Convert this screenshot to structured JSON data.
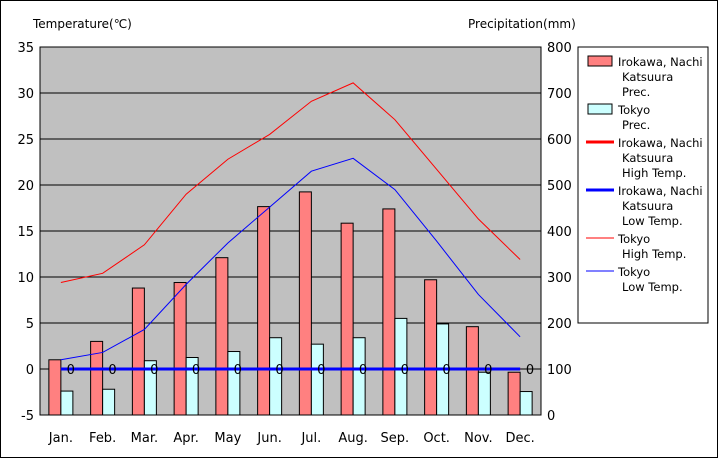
{
  "chart_data": {
    "type": "bar+line",
    "left_axis_title": "Temperature(℃)",
    "right_axis_title": "Precipitation(mm)",
    "left_ticks": [
      "35",
      "30",
      "25",
      "20",
      "15",
      "10",
      "5",
      "0",
      "-5"
    ],
    "right_ticks": [
      "800",
      "700",
      "600",
      "500",
      "400",
      "300",
      "200",
      "100",
      "0"
    ],
    "ylim_temp": [
      -5,
      35
    ],
    "ylim_prec": [
      0,
      800
    ],
    "categories": [
      "Jan.",
      "Feb.",
      "Mar.",
      "Apr.",
      "May",
      "Jun.",
      "Jul.",
      "Aug.",
      "Sep.",
      "Oct.",
      "Nov.",
      "Dec."
    ],
    "bar_series": [
      {
        "name": "Irokawa, Nachi Katsuura Prec.",
        "color": "#ff8080",
        "values": [
          120,
          160,
          276,
          288,
          342,
          453,
          485,
          417,
          448,
          294,
          192,
          93
        ]
      },
      {
        "name": "Tokyo Prec.",
        "color": "#ccffff",
        "values": [
          52,
          56,
          118,
          125,
          138,
          168,
          154,
          168,
          210,
          198,
          93,
          51
        ]
      }
    ],
    "line_series": [
      {
        "name": "Irokawa, Nachi Katsuura High Temp.",
        "color": "#ff0000",
        "width": 3,
        "values": [
          0,
          0,
          0,
          0,
          0,
          0,
          0,
          0,
          0,
          0,
          0,
          0
        ]
      },
      {
        "name": "Irokawa, Nachi Katsuura Low Temp.",
        "color": "#0000ff",
        "width": 3,
        "values": [
          0,
          0,
          0,
          0,
          0,
          0,
          0,
          0,
          0,
          0,
          0,
          0
        ]
      },
      {
        "name": "Tokyo High Temp.",
        "color": "#ff0000",
        "width": 1,
        "values": [
          9.4,
          10.4,
          13.5,
          19,
          22.8,
          25.5,
          29.1,
          31.1,
          27.1,
          21.7,
          16.3,
          11.9
        ]
      },
      {
        "name": "Tokyo Low Temp.",
        "color": "#0000ff",
        "width": 1,
        "values": [
          1.0,
          1.8,
          4.3,
          9.2,
          13.7,
          17.6,
          21.5,
          22.9,
          19.5,
          13.9,
          8.1,
          3.5
        ]
      }
    ],
    "zero_value_label": "0",
    "zero_labels_months": [
      1,
      2,
      3,
      4,
      5,
      6,
      7,
      8,
      9,
      10,
      11,
      12
    ],
    "legend": [
      {
        "lines": [
          "Irokawa, Nachi",
          "Katsuura",
          "Prec."
        ],
        "kind": "box",
        "color": "#ff8080"
      },
      {
        "lines": [
          "Tokyo",
          "Prec."
        ],
        "kind": "box",
        "color": "#ccffff"
      },
      {
        "lines": [
          "Irokawa, Nachi",
          "Katsuura",
          "High Temp."
        ],
        "kind": "line",
        "color": "#ff0000",
        "width": 3
      },
      {
        "lines": [
          "Irokawa, Nachi",
          "Katsuura",
          "Low Temp."
        ],
        "kind": "line",
        "color": "#0000ff",
        "width": 3
      },
      {
        "lines": [
          "Tokyo",
          "High Temp."
        ],
        "kind": "line",
        "color": "#ff0000",
        "width": 1
      },
      {
        "lines": [
          "Tokyo",
          "Low Temp."
        ],
        "kind": "line",
        "color": "#0000ff",
        "width": 1
      }
    ],
    "plot_background": "#c0c0c0",
    "grid": true,
    "legend_placement": "right"
  }
}
